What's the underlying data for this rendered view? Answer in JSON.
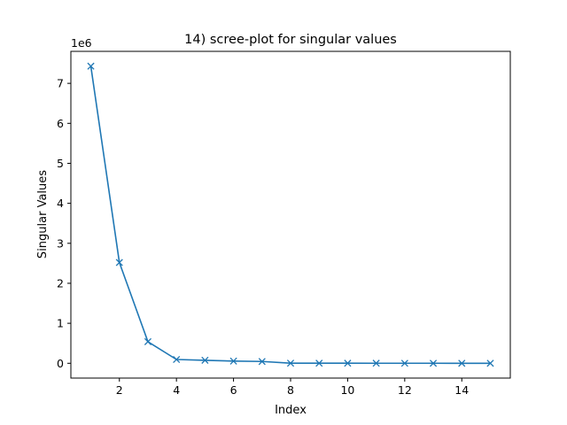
{
  "chart_data": {
    "type": "line",
    "title": "14) scree-plot for singular values",
    "xlabel": "Index",
    "ylabel": "Singular Values",
    "y_offset_label": "1e6",
    "x": [
      1,
      2,
      3,
      4,
      5,
      6,
      7,
      8,
      9,
      10,
      11,
      12,
      13,
      14,
      15
    ],
    "series": [
      {
        "values": [
          7430000,
          2520000,
          540000,
          95000,
          75000,
          55000,
          45000,
          2000,
          1500,
          1200,
          1000,
          800,
          600,
          400,
          200
        ],
        "color": "#1f77b4",
        "marker": "x"
      }
    ],
    "xlim": [
      0.3,
      15.7
    ],
    "ylim": [
      -370000,
      7800000
    ],
    "xticks": [
      2,
      4,
      6,
      8,
      10,
      12,
      14
    ],
    "xtick_labels": [
      "2",
      "4",
      "6",
      "8",
      "10",
      "12",
      "14"
    ],
    "yticks": [
      0,
      1000000,
      2000000,
      3000000,
      4000000,
      5000000,
      6000000,
      7000000
    ],
    "ytick_labels": [
      "0",
      "1",
      "2",
      "3",
      "4",
      "5",
      "6",
      "7"
    ],
    "grid": false
  }
}
